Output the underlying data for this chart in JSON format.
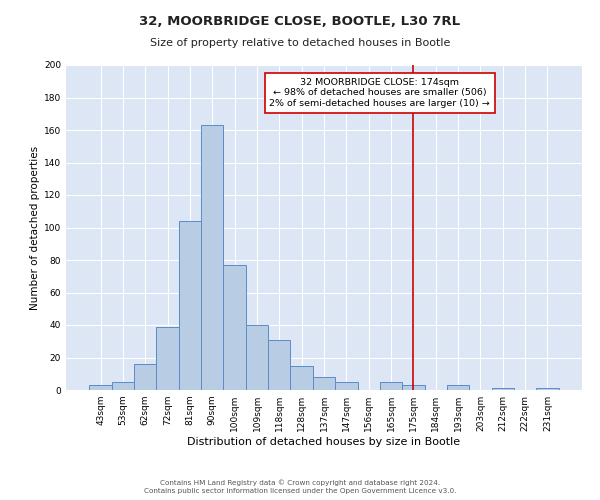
{
  "title": "32, MOORBRIDGE CLOSE, BOOTLE, L30 7RL",
  "subtitle": "Size of property relative to detached houses in Bootle",
  "xlabel": "Distribution of detached houses by size in Bootle",
  "ylabel": "Number of detached properties",
  "bar_labels": [
    "43sqm",
    "53sqm",
    "62sqm",
    "72sqm",
    "81sqm",
    "90sqm",
    "100sqm",
    "109sqm",
    "118sqm",
    "128sqm",
    "137sqm",
    "147sqm",
    "156sqm",
    "165sqm",
    "175sqm",
    "184sqm",
    "193sqm",
    "203sqm",
    "212sqm",
    "222sqm",
    "231sqm"
  ],
  "bar_heights": [
    3,
    5,
    16,
    39,
    104,
    163,
    77,
    40,
    31,
    15,
    8,
    5,
    0,
    5,
    3,
    0,
    3,
    0,
    1,
    0,
    1
  ],
  "bar_color": "#b8cce4",
  "bar_edge_color": "#5b8cc8",
  "vline_x": 14,
  "vline_color": "#cc0000",
  "annotation_title": "32 MOORBRIDGE CLOSE: 174sqm",
  "annotation_line1": "← 98% of detached houses are smaller (506)",
  "annotation_line2": "2% of semi-detached houses are larger (10) →",
  "annotation_box_color": "#ffffff",
  "annotation_box_edge_color": "#cc0000",
  "ylim": [
    0,
    200
  ],
  "yticks": [
    0,
    20,
    40,
    60,
    80,
    100,
    120,
    140,
    160,
    180,
    200
  ],
  "footer_line1": "Contains HM Land Registry data © Crown copyright and database right 2024.",
  "footer_line2": "Contains public sector information licensed under the Open Government Licence v3.0.",
  "bg_color": "#dce6f5",
  "grid_color": "#ffffff",
  "title_fontsize": 9.5,
  "subtitle_fontsize": 8,
  "ylabel_fontsize": 7.5,
  "xlabel_fontsize": 8,
  "tick_fontsize": 6.5,
  "annot_fontsize": 6.8,
  "footer_fontsize": 5.2
}
